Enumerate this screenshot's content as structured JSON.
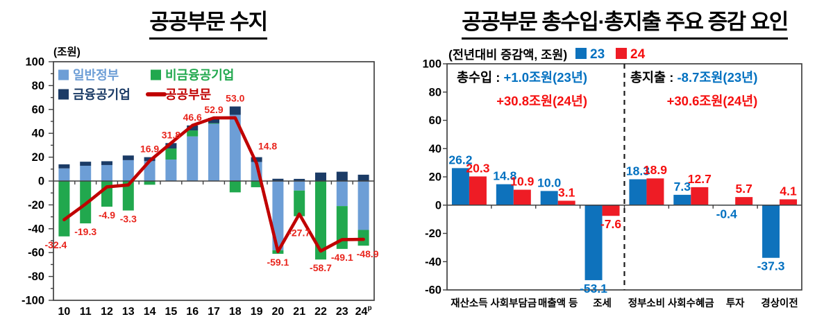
{
  "page": {
    "background": "#FFFFFF"
  },
  "chart_data": [
    {
      "id": "public-sector-balance",
      "type": "bar",
      "stacked": true,
      "title": "공공부문 수지",
      "unit_label": "(조원)",
      "categories": [
        "10",
        "11",
        "12",
        "13",
        "14",
        "15",
        "16",
        "17",
        "18",
        "19",
        "20",
        "21",
        "22",
        "23",
        "24"
      ],
      "last_category_superscript": "p",
      "ylim": [
        -100,
        100
      ],
      "ytick_step": 20,
      "grid": false,
      "legend_position": "inside-top-left",
      "axis_color": "#3F3F3F",
      "series": [
        {
          "name": "일반정부",
          "type": "bar",
          "color": "#6D9ED6",
          "values": [
            10.6,
            12.8,
            13.4,
            17.5,
            16.7,
            18.0,
            37.4,
            48.0,
            55.5,
            16.0,
            -58.0,
            -8.0,
            0.0,
            -21.0,
            -41.0
          ]
        },
        {
          "name": "비금융공기업",
          "type": "bar",
          "color": "#21A84E",
          "values": [
            -46.4,
            -35.5,
            -21.5,
            -24.7,
            -3.1,
            9.3,
            5.0,
            0.5,
            -9.5,
            -5.2,
            -3.0,
            -21.5,
            -65.8,
            -35.9,
            -13.2
          ]
        },
        {
          "name": "금융공기업",
          "type": "bar",
          "color": "#1B3B66",
          "values": [
            3.4,
            3.4,
            3.2,
            3.9,
            3.3,
            4.5,
            4.2,
            4.4,
            7.0,
            4.0,
            1.9,
            1.8,
            7.1,
            7.8,
            5.3
          ]
        },
        {
          "name": "공공부문",
          "type": "line",
          "color": "#C00000",
          "label_color": "#E8251D",
          "show_labels": true,
          "values": [
            -32.4,
            -19.3,
            -4.9,
            -3.3,
            16.9,
            31.8,
            46.6,
            52.9,
            53.0,
            14.8,
            -59.1,
            -27.7,
            -58.7,
            -49.1,
            -48.9
          ]
        }
      ]
    },
    {
      "id": "revenue-expenditure-change-factors",
      "type": "bar",
      "stacked": false,
      "title": "공공부문 총수입·총지출 주요 증감 요인",
      "subtitle": "(전년대비 증감액, 조원)",
      "categories": [
        "재산소득",
        "사회부담금",
        "매출액 등",
        "조세",
        "정부소비",
        "사회수혜금",
        "투자",
        "경상이전"
      ],
      "ylim": [
        -60,
        100
      ],
      "ytick_step": 20,
      "grid": false,
      "legend_position": "top",
      "axis_color": "#3F3F3F",
      "separator_after_category": "조세",
      "series": [
        {
          "name": "23",
          "color": "#0E72BC",
          "label_color": "#0070C0",
          "values": [
            26.2,
            14.8,
            10.0,
            -53.1,
            18.3,
            7.3,
            -0.4,
            -37.3
          ]
        },
        {
          "name": "24",
          "color": "#EE1C25",
          "label_color": "#F50F0F",
          "values": [
            20.3,
            10.9,
            3.1,
            -7.6,
            18.9,
            12.7,
            5.7,
            4.1
          ]
        }
      ],
      "annotations": [
        {
          "label": "총수입 : ",
          "line1": "+1.0조원(23년)",
          "line1_color": "#0070C0",
          "line2": "+30.8조원(24년)",
          "line2_color": "#F50F0F"
        },
        {
          "label": "총지출 :  ",
          "line1": "-8.7조원(23년)",
          "line1_color": "#0070C0",
          "line2": "+30.6조원(24년)",
          "line2_color": "#F50F0F"
        }
      ]
    }
  ]
}
